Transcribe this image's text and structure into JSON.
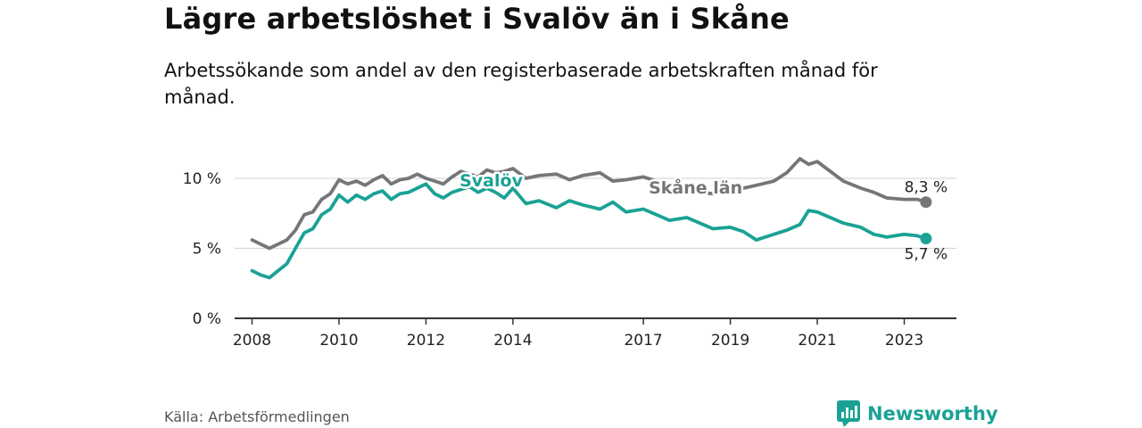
{
  "title": "Lägre arbetslöshet i Svalöv än i Skåne",
  "subtitle": "Arbetssökande som andel av den registerbaserade arbetskraften månad för månad.",
  "source": "Källa: Arbetsförmedlingen",
  "brand": "Newsworthy",
  "colors": {
    "svalov": "#1aa295",
    "skane": "#76767a",
    "axis": "#333333",
    "grid": "#d9d9d9"
  },
  "chart_data": {
    "type": "line",
    "title": "Lägre arbetslöshet i Svalöv än i Skåne",
    "xlabel": "",
    "ylabel": "",
    "ylim": [
      0,
      12.5
    ],
    "xlim": [
      2007.6,
      2024.2
    ],
    "y_ticks": [
      0,
      5,
      10
    ],
    "y_tick_labels": [
      "0 %",
      "5 %",
      "10 %"
    ],
    "x_ticks": [
      2008,
      2010,
      2012,
      2014,
      2017,
      2019,
      2021,
      2023
    ],
    "x_tick_labels": [
      "2008",
      "2010",
      "2012",
      "2014",
      "2017",
      "2019",
      "2021",
      "2023"
    ],
    "series": [
      {
        "name": "Skåne län",
        "end_label": "8,3 %",
        "x": [
          2008.0,
          2008.2,
          2008.4,
          2008.6,
          2008.8,
          2009.0,
          2009.2,
          2009.4,
          2009.6,
          2009.8,
          2010.0,
          2010.2,
          2010.4,
          2010.6,
          2010.8,
          2011.0,
          2011.2,
          2011.4,
          2011.6,
          2011.8,
          2012.0,
          2012.2,
          2012.4,
          2012.6,
          2012.8,
          2013.0,
          2013.2,
          2013.4,
          2013.6,
          2013.8,
          2014.0,
          2014.3,
          2014.6,
          2015.0,
          2015.3,
          2015.6,
          2016.0,
          2016.3,
          2016.6,
          2017.0,
          2017.3,
          2017.6,
          2018.0,
          2018.3,
          2018.6,
          2019.0,
          2019.3,
          2019.6,
          2020.0,
          2020.3,
          2020.6,
          2020.8,
          2021.0,
          2021.3,
          2021.6,
          2022.0,
          2022.3,
          2022.6,
          2023.0,
          2023.3,
          2023.5
        ],
        "values": [
          5.6,
          5.3,
          5.0,
          5.3,
          5.6,
          6.3,
          7.4,
          7.6,
          8.5,
          8.9,
          9.9,
          9.6,
          9.8,
          9.5,
          9.9,
          10.2,
          9.6,
          9.9,
          10.0,
          10.3,
          10.0,
          9.8,
          9.6,
          10.1,
          10.5,
          10.3,
          10.1,
          10.6,
          10.4,
          10.5,
          10.7,
          10.0,
          10.2,
          10.3,
          9.9,
          10.2,
          10.4,
          9.8,
          9.9,
          10.1,
          9.8,
          9.6,
          9.3,
          9.0,
          8.9,
          9.1,
          9.3,
          9.5,
          9.8,
          10.4,
          11.4,
          11.0,
          11.2,
          10.5,
          9.8,
          9.3,
          9.0,
          8.6,
          8.5,
          8.5,
          8.3
        ]
      },
      {
        "name": "Svalöv",
        "end_label": "5,7 %",
        "x": [
          2008.0,
          2008.2,
          2008.4,
          2008.6,
          2008.8,
          2009.0,
          2009.2,
          2009.4,
          2009.6,
          2009.8,
          2010.0,
          2010.2,
          2010.4,
          2010.6,
          2010.8,
          2011.0,
          2011.2,
          2011.4,
          2011.6,
          2011.8,
          2012.0,
          2012.2,
          2012.4,
          2012.6,
          2012.8,
          2013.0,
          2013.2,
          2013.4,
          2013.6,
          2013.8,
          2014.0,
          2014.3,
          2014.6,
          2015.0,
          2015.3,
          2015.6,
          2016.0,
          2016.3,
          2016.6,
          2017.0,
          2017.3,
          2017.6,
          2018.0,
          2018.3,
          2018.6,
          2019.0,
          2019.3,
          2019.6,
          2020.0,
          2020.3,
          2020.6,
          2020.8,
          2021.0,
          2021.3,
          2021.6,
          2022.0,
          2022.3,
          2022.6,
          2023.0,
          2023.3,
          2023.5
        ],
        "values": [
          3.4,
          3.1,
          2.9,
          3.4,
          3.9,
          5.0,
          6.1,
          6.4,
          7.4,
          7.8,
          8.8,
          8.3,
          8.8,
          8.5,
          8.9,
          9.1,
          8.5,
          8.9,
          9.0,
          9.3,
          9.6,
          8.9,
          8.6,
          9.0,
          9.2,
          9.4,
          9.0,
          9.3,
          9.0,
          8.6,
          9.3,
          8.2,
          8.4,
          7.9,
          8.4,
          8.1,
          7.8,
          8.3,
          7.6,
          7.8,
          7.4,
          7.0,
          7.2,
          6.8,
          6.4,
          6.5,
          6.2,
          5.6,
          6.0,
          6.3,
          6.7,
          7.7,
          7.6,
          7.2,
          6.8,
          6.5,
          6.0,
          5.8,
          6.0,
          5.9,
          5.7
        ]
      }
    ],
    "annotations": [
      {
        "text": "Svalöv",
        "series": "Svalöv",
        "x": 2013.5,
        "y": 9.8
      },
      {
        "text": "Skåne län",
        "series": "Skåne län",
        "x": 2018.2,
        "y": 9.3
      }
    ]
  }
}
